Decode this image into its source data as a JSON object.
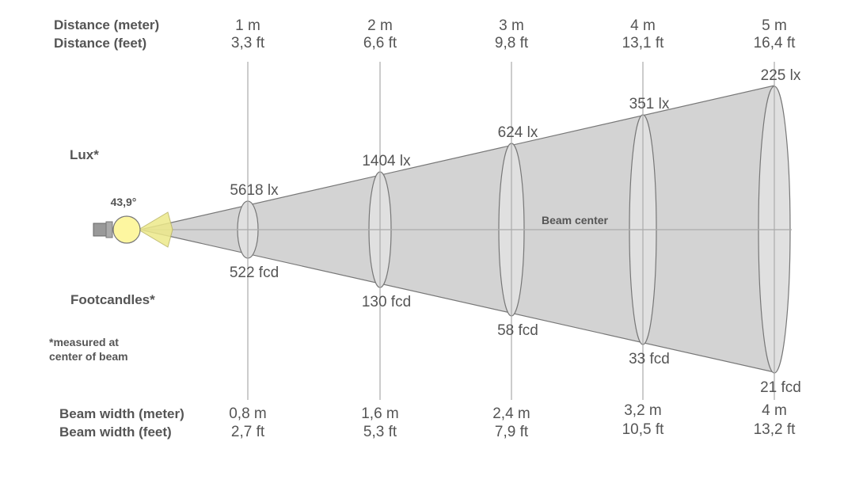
{
  "labels": {
    "distance_meter": "Distance (meter)",
    "distance_feet": "Distance (feet)",
    "lux": "Lux*",
    "footcandles": "Footcandles*",
    "footnote_line1": "*measured at",
    "footnote_line2": "center of beam",
    "beam_width_meter": "Beam width (meter)",
    "beam_width_feet": "Beam width (feet)",
    "beam_angle": "43,9°",
    "beam_center": "Beam center"
  },
  "points": [
    {
      "distance_m": "1 m",
      "distance_ft": "3,3 ft",
      "lux": "5618 lx",
      "fcd": "522 fcd",
      "width_m": "0,8 m",
      "width_ft": "2,7 ft"
    },
    {
      "distance_m": "2 m",
      "distance_ft": "6,6 ft",
      "lux": "1404 lx",
      "fcd": "130 fcd",
      "width_m": "1,6 m",
      "width_ft": "5,3 ft"
    },
    {
      "distance_m": "3 m",
      "distance_ft": "9,8 ft",
      "lux": "624 lx",
      "fcd": "58 fcd",
      "width_m": "2,4 m",
      "width_ft": "7,9 ft"
    },
    {
      "distance_m": "4 m",
      "distance_ft": "13,1 ft",
      "lux": "351 lx",
      "fcd": "33 fcd",
      "width_m": "3,2 m",
      "width_ft": "10,5 ft"
    },
    {
      "distance_m": "5 m",
      "distance_ft": "16,4 ft",
      "lux": "225 lx",
      "fcd": "21 fcd",
      "width_m": "4 m",
      "width_ft": "13,2 ft"
    }
  ],
  "colors": {
    "cone": "#d3d3d3",
    "bulb": "#fdf6a0",
    "lines": "#777777",
    "text": "#555555"
  }
}
